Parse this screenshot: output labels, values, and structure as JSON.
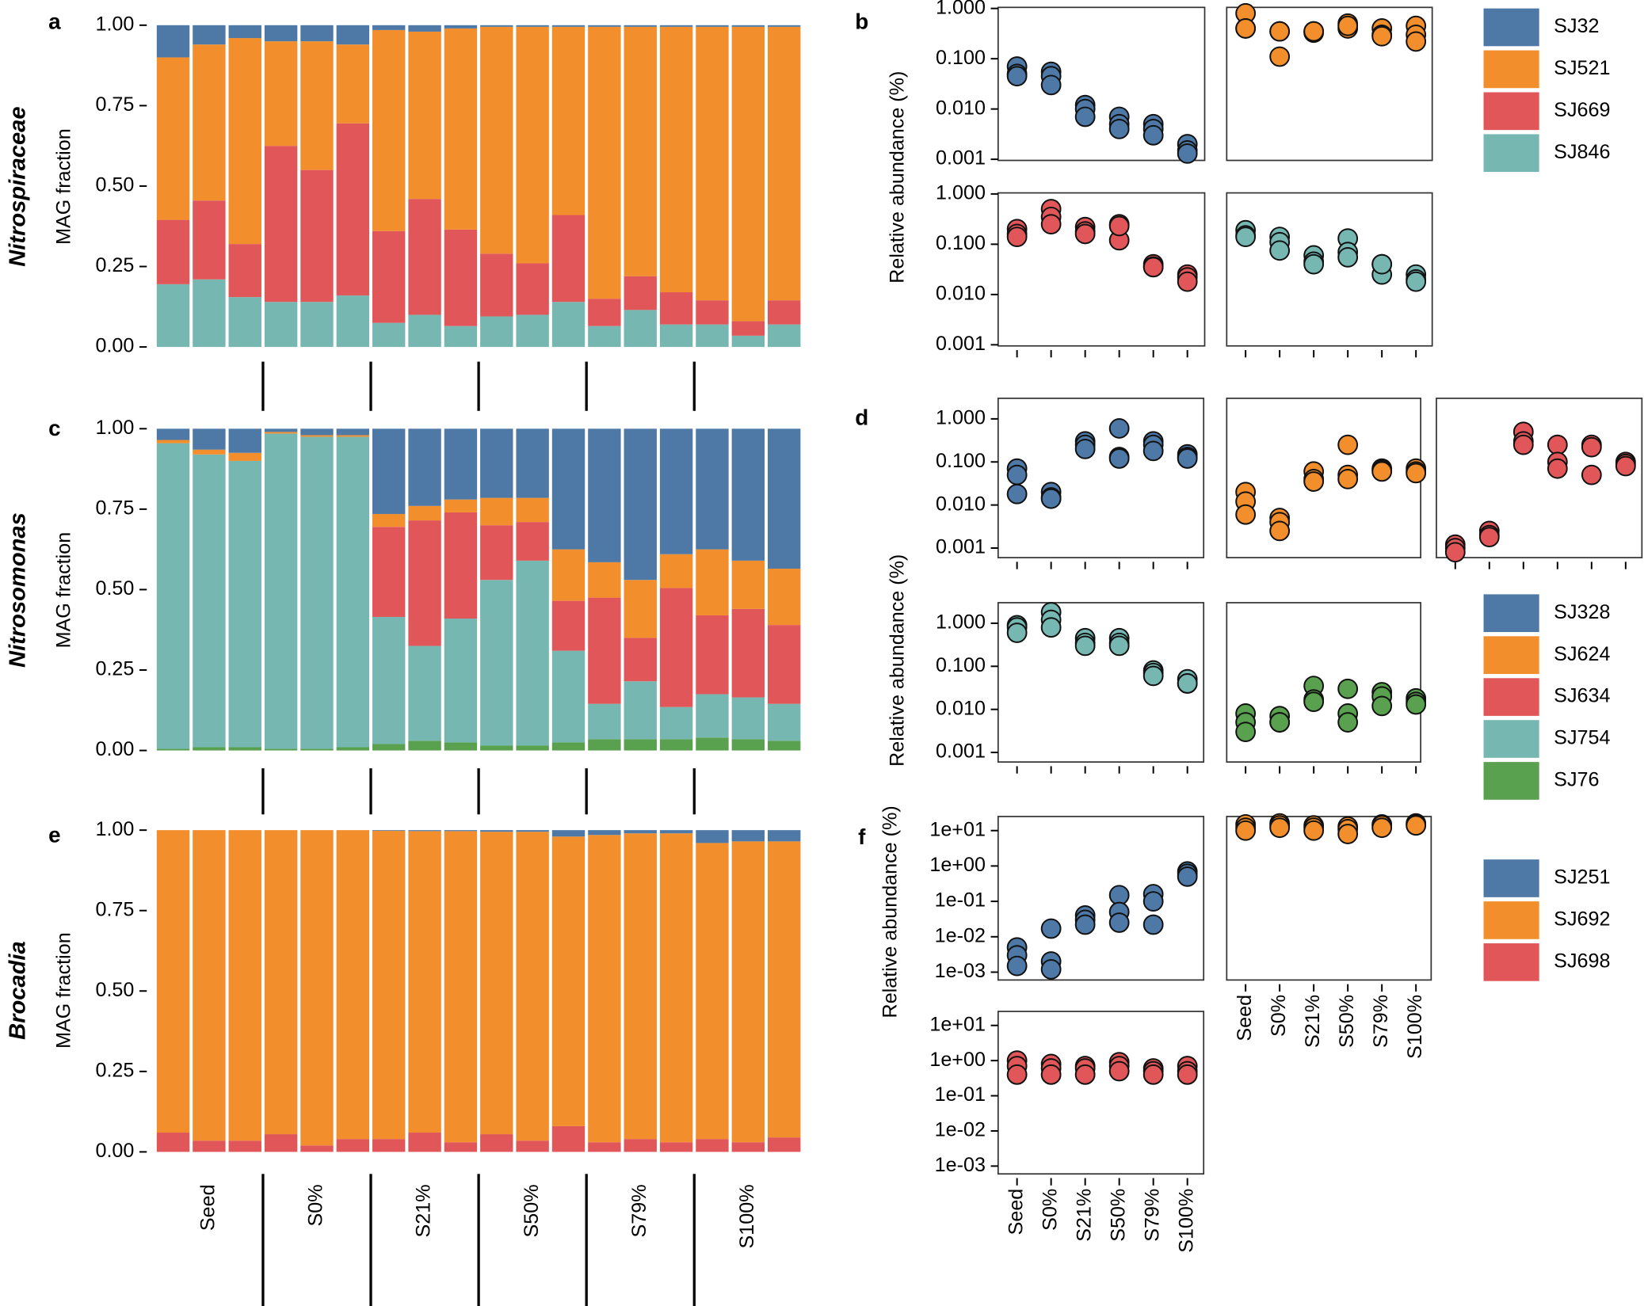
{
  "chart_data": [
    {
      "type": "bar",
      "stacked": true,
      "panel": "a",
      "title": "Nitrospiraceae",
      "ylabel": "MAG fraction",
      "categories": [
        null,
        null,
        null,
        null,
        null,
        null,
        null,
        null,
        null,
        null,
        null,
        null,
        null,
        null,
        null,
        null,
        null,
        null
      ],
      "ylim": [
        0,
        1
      ],
      "yticks": [
        {
          "value": 0,
          "label": "0.00"
        },
        {
          "value": 0.25,
          "label": "0.25"
        },
        {
          "value": 0.5,
          "label": "0.50"
        },
        {
          "value": 0.75,
          "label": "0.75"
        },
        {
          "value": 1,
          "label": "1.00"
        }
      ],
      "series": [
        {
          "name": "SJ32",
          "color": "#4e79a7",
          "values": [
            0.1,
            0.06,
            0.04,
            0.05,
            0.05,
            0.06,
            0.015,
            0.02,
            0.01,
            0.005,
            0.005,
            0.005,
            0.005,
            0.005,
            0.005,
            0.005,
            0.005,
            0.005
          ]
        },
        {
          "name": "SJ521",
          "color": "#f28e2b",
          "values": [
            0.505,
            0.485,
            0.64,
            0.325,
            0.4,
            0.245,
            0.625,
            0.52,
            0.625,
            0.705,
            0.735,
            0.585,
            0.845,
            0.775,
            0.825,
            0.85,
            0.915,
            0.85
          ]
        },
        {
          "name": "SJ669",
          "color": "#e15759",
          "values": [
            0.2,
            0.245,
            0.165,
            0.485,
            0.41,
            0.535,
            0.285,
            0.36,
            0.3,
            0.195,
            0.16,
            0.27,
            0.085,
            0.105,
            0.1,
            0.075,
            0.045,
            0.075
          ]
        },
        {
          "name": "SJ846",
          "color": "#76b7b2",
          "values": [
            0.195,
            0.21,
            0.155,
            0.14,
            0.14,
            0.16,
            0.075,
            0.1,
            0.065,
            0.095,
            0.1,
            0.14,
            0.065,
            0.115,
            0.07,
            0.07,
            0.035,
            0.07
          ]
        }
      ]
    },
    {
      "type": "bar",
      "stacked": true,
      "panel": "c",
      "title": "Nitrosomonas",
      "ylabel": "MAG fraction",
      "categories": [
        null,
        null,
        null,
        null,
        null,
        null,
        null,
        null,
        null,
        null,
        null,
        null,
        null,
        null,
        null,
        null,
        null,
        null
      ],
      "ylim": [
        0,
        1
      ],
      "yticks": [
        {
          "value": 0,
          "label": "0.00"
        },
        {
          "value": 0.25,
          "label": "0.25"
        },
        {
          "value": 0.5,
          "label": "0.50"
        },
        {
          "value": 0.75,
          "label": "0.75"
        },
        {
          "value": 1,
          "label": "1.00"
        }
      ],
      "series": [
        {
          "name": "SJ328",
          "color": "#4e79a7",
          "values": [
            0.035,
            0.065,
            0.075,
            0.01,
            0.02,
            0.02,
            0.265,
            0.24,
            0.22,
            0.215,
            0.215,
            0.375,
            0.415,
            0.47,
            0.39,
            0.375,
            0.41,
            0.435
          ]
        },
        {
          "name": "SJ624",
          "color": "#f28e2b",
          "values": [
            0.01,
            0.015,
            0.025,
            0.005,
            0.005,
            0.005,
            0.04,
            0.045,
            0.04,
            0.085,
            0.075,
            0.16,
            0.11,
            0.18,
            0.105,
            0.205,
            0.15,
            0.175
          ]
        },
        {
          "name": "SJ634",
          "color": "#e15759",
          "values": [
            0,
            0,
            0,
            0,
            0,
            0,
            0.28,
            0.39,
            0.33,
            0.17,
            0.12,
            0.155,
            0.33,
            0.135,
            0.37,
            0.245,
            0.275,
            0.245
          ]
        },
        {
          "name": "SJ754",
          "color": "#76b7b2",
          "values": [
            0.95,
            0.91,
            0.89,
            0.98,
            0.97,
            0.965,
            0.395,
            0.295,
            0.385,
            0.515,
            0.575,
            0.285,
            0.11,
            0.18,
            0.1,
            0.135,
            0.13,
            0.115
          ]
        },
        {
          "name": "SJ76",
          "color": "#59a14f",
          "values": [
            0.005,
            0.01,
            0.01,
            0.005,
            0.005,
            0.01,
            0.02,
            0.03,
            0.025,
            0.015,
            0.015,
            0.025,
            0.035,
            0.035,
            0.035,
            0.04,
            0.035,
            0.03
          ]
        }
      ]
    },
    {
      "type": "bar",
      "stacked": true,
      "panel": "e",
      "title": "Brocadia",
      "ylabel": "MAG fraction",
      "categories": [
        null,
        null,
        null,
        null,
        null,
        null,
        null,
        null,
        null,
        null,
        null,
        null,
        null,
        null,
        null,
        null,
        null,
        null
      ],
      "groups": [
        "Seed",
        "S0%",
        "S21%",
        "S50%",
        "S79%",
        "S100%"
      ],
      "ylim": [
        0,
        1
      ],
      "yticks": [
        {
          "value": 0,
          "label": "0.00"
        },
        {
          "value": 0.25,
          "label": "0.25"
        },
        {
          "value": 0.5,
          "label": "0.50"
        },
        {
          "value": 0.75,
          "label": "0.75"
        },
        {
          "value": 1,
          "label": "1.00"
        }
      ],
      "series": [
        {
          "name": "SJ251",
          "color": "#4e79a7",
          "values": [
            0,
            0,
            0,
            0,
            0,
            0,
            0.002,
            0.003,
            0.003,
            0.005,
            0.005,
            0.02,
            0.015,
            0.01,
            0.01,
            0.04,
            0.035,
            0.035
          ]
        },
        {
          "name": "SJ692",
          "color": "#f28e2b",
          "values": [
            0.94,
            0.965,
            0.965,
            0.945,
            0.98,
            0.96,
            0.958,
            0.937,
            0.967,
            0.94,
            0.96,
            0.9,
            0.955,
            0.95,
            0.96,
            0.92,
            0.935,
            0.92
          ]
        },
        {
          "name": "SJ698",
          "color": "#e15759",
          "values": [
            0.06,
            0.035,
            0.035,
            0.055,
            0.02,
            0.04,
            0.04,
            0.06,
            0.03,
            0.055,
            0.035,
            0.08,
            0.03,
            0.04,
            0.03,
            0.04,
            0.03,
            0.045
          ]
        }
      ]
    },
    {
      "type": "scatter",
      "panel": "b",
      "log_y": true,
      "ylabel": "Relative abundance (%)",
      "categories": [
        null,
        null,
        null,
        null,
        null,
        null
      ],
      "ylim": [
        0.00095,
        1.05
      ],
      "yticks": [
        {
          "value": 0.001,
          "label": "0.001"
        },
        {
          "value": 0.01,
          "label": "0.010"
        },
        {
          "value": 0.1,
          "label": "0.100"
        },
        {
          "value": 1,
          "label": "1.000"
        }
      ],
      "series": [
        {
          "color": "#4e79a7",
          "values": [
            [
              0.07,
              0.05,
              0.045
            ],
            [
              0.055,
              0.045,
              0.03
            ],
            [
              0.012,
              0.01,
              0.007
            ],
            [
              0.007,
              0.005,
              0.004
            ],
            [
              0.005,
              0.004,
              0.003
            ],
            [
              0.002,
              0.0015,
              0.0013
            ]
          ]
        },
        {
          "color": "#f28e2b",
          "values": [
            [
              0.8,
              0.4,
              0.4
            ],
            [
              0.35,
              0.35,
              0.11
            ],
            [
              0.35,
              0.33,
              0.35
            ],
            [
              0.5,
              0.4,
              0.45
            ],
            [
              0.4,
              0.3,
              0.28
            ],
            [
              0.45,
              0.3,
              0.22
            ]
          ]
        },
        {
          "color": "#e15759",
          "values": [
            [
              0.2,
              0.16,
              0.14
            ],
            [
              0.5,
              0.35,
              0.25
            ],
            [
              0.22,
              0.18,
              0.16
            ],
            [
              0.25,
              0.12,
              0.23
            ],
            [
              0.04,
              0.036,
              0.035
            ],
            [
              0.025,
              0.022,
              0.018
            ]
          ]
        },
        {
          "color": "#76b7b2",
          "values": [
            [
              0.19,
              0.15,
              0.14
            ],
            [
              0.14,
              0.11,
              0.075
            ],
            [
              0.06,
              0.045,
              0.04
            ],
            [
              0.13,
              0.07,
              0.055
            ],
            [
              0.04,
              0.025,
              0.04
            ],
            [
              0.025,
              0.02,
              0.018
            ]
          ]
        }
      ]
    },
    {
      "type": "scatter",
      "panel": "d",
      "log_y": true,
      "ylabel": "Relative abundance (%)",
      "categories": [
        null,
        null,
        null,
        null,
        null,
        null
      ],
      "ylim": [
        0.0006,
        3
      ],
      "yticks": [
        {
          "value": 0.001,
          "label": "0.001"
        },
        {
          "value": 0.01,
          "label": "0.010"
        },
        {
          "value": 0.1,
          "label": "0.100"
        },
        {
          "value": 1,
          "label": "1.000"
        }
      ],
      "series": [
        {
          "color": "#4e79a7",
          "values": [
            [
              0.07,
              0.05,
              0.018
            ],
            [
              0.02,
              0.015,
              0.014
            ],
            [
              0.3,
              0.25,
              0.2
            ],
            [
              0.6,
              0.13,
              0.12
            ],
            [
              0.3,
              0.25,
              0.18
            ],
            [
              0.15,
              0.13,
              0.12
            ]
          ]
        },
        {
          "color": "#f28e2b",
          "values": [
            [
              0.02,
              0.012,
              0.006
            ],
            [
              0.005,
              0.004,
              0.0025
            ],
            [
              0.06,
              0.04,
              0.035
            ],
            [
              0.25,
              0.05,
              0.04
            ],
            [
              0.07,
              0.065,
              0.06
            ],
            [
              0.07,
              0.06,
              0.055
            ]
          ]
        },
        {
          "color": "#e15759",
          "values": [
            [
              0.0012,
              0.001,
              0.0008
            ],
            [
              0.0025,
              0.002,
              0.0018
            ],
            [
              0.5,
              0.3,
              0.25
            ],
            [
              0.25,
              0.1,
              0.07
            ],
            [
              0.25,
              0.22,
              0.05
            ],
            [
              0.1,
              0.09,
              0.08
            ]
          ]
        },
        {
          "color": "#76b7b2",
          "values": [
            [
              0.9,
              0.8,
              0.6
            ],
            [
              1.8,
              1.2,
              0.8
            ],
            [
              0.45,
              0.35,
              0.3
            ],
            [
              0.45,
              0.35,
              0.3
            ],
            [
              0.08,
              0.07,
              0.06
            ],
            [
              0.05,
              0.04,
              0.04
            ]
          ]
        },
        {
          "color": "#59a14f",
          "values": [
            [
              0.008,
              0.005,
              0.003
            ],
            [
              0.007,
              0.005,
              0.005
            ],
            [
              0.035,
              0.017,
              0.015
            ],
            [
              0.03,
              0.008,
              0.005
            ],
            [
              0.025,
              0.02,
              0.012
            ],
            [
              0.018,
              0.015,
              0.013
            ]
          ]
        }
      ]
    },
    {
      "type": "scatter",
      "panel": "f",
      "log_y": true,
      "ylabel": "Relative abundance (%)",
      "categories": [
        "Seed",
        "S0%",
        "S21%",
        "S50%",
        "S79%",
        "S100%"
      ],
      "ylim": [
        0.0006,
        25
      ],
      "yticks": [
        {
          "value": 0.001,
          "label": "1e-03"
        },
        {
          "value": 0.01,
          "label": "1e-02"
        },
        {
          "value": 0.1,
          "label": "1e-01"
        },
        {
          "value": 1,
          "label": "1e+00"
        },
        {
          "value": 10,
          "label": "1e+01"
        }
      ],
      "series": [
        {
          "color": "#4e79a7",
          "values": [
            [
              0.005,
              0.003,
              0.0015
            ],
            [
              0.017,
              0.002,
              0.0012
            ],
            [
              0.04,
              0.03,
              0.022
            ],
            [
              0.15,
              0.05,
              0.025
            ],
            [
              0.16,
              0.1,
              0.022
            ],
            [
              0.7,
              0.6,
              0.5
            ]
          ]
        },
        {
          "color": "#f28e2b",
          "values": [
            [
              15,
              12,
              10
            ],
            [
              16,
              14,
              12
            ],
            [
              14,
              12,
              10
            ],
            [
              13,
              11,
              8
            ],
            [
              15,
              14,
              12
            ],
            [
              16,
              15,
              14
            ]
          ]
        },
        {
          "color": "#e15759",
          "values": [
            [
              1,
              0.7,
              0.4
            ],
            [
              0.8,
              0.6,
              0.4
            ],
            [
              0.7,
              0.6,
              0.4
            ],
            [
              0.9,
              0.7,
              0.5
            ],
            [
              0.6,
              0.5,
              0.4
            ],
            [
              0.7,
              0.5,
              0.4
            ]
          ]
        }
      ]
    }
  ]
}
